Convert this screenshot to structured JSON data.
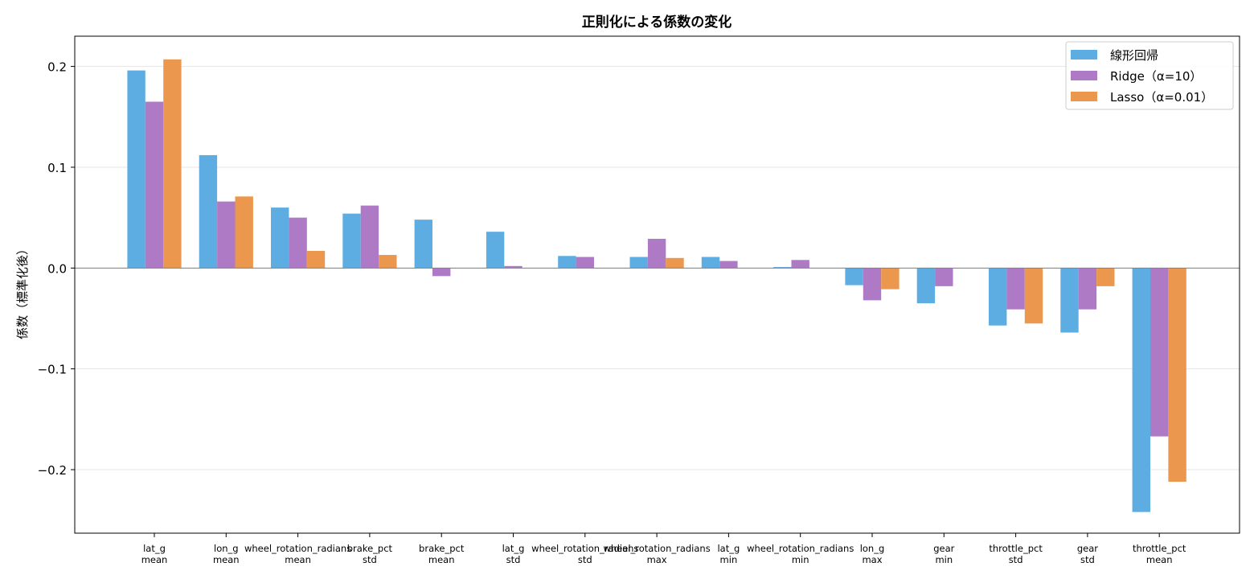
{
  "chart_data": {
    "type": "bar",
    "title": "正則化による係数の変化",
    "xlabel": "",
    "ylabel": "係数（標準化後）",
    "ylim": [
      -0.263,
      0.23
    ],
    "yticks": [
      -0.2,
      -0.1,
      0.0,
      0.1,
      0.2
    ],
    "ytick_labels": [
      "−0.2",
      "−0.1",
      "0.0",
      "0.1",
      "0.2"
    ],
    "grid": "horizontal",
    "legend_position": "top-right",
    "categories": [
      [
        "lat_g",
        "mean"
      ],
      [
        "lon_g",
        "mean"
      ],
      [
        "wheel_rotation_radians",
        "mean"
      ],
      [
        "brake_pct",
        "std"
      ],
      [
        "brake_pct",
        "mean"
      ],
      [
        "lat_g",
        "std"
      ],
      [
        "wheel_rotation_radians",
        "std"
      ],
      [
        "wheel_rotation_radians",
        "max"
      ],
      [
        "lat_g",
        "min"
      ],
      [
        "wheel_rotation_radians",
        "min"
      ],
      [
        "lon_g",
        "max"
      ],
      [
        "gear",
        "min"
      ],
      [
        "throttle_pct",
        "std"
      ],
      [
        "gear",
        "std"
      ],
      [
        "throttle_pct",
        "mean"
      ]
    ],
    "series": [
      {
        "name": "線形回帰",
        "color": "#5DADE2",
        "values": [
          0.196,
          0.112,
          0.06,
          0.054,
          0.048,
          0.036,
          0.012,
          0.011,
          0.011,
          0.001,
          -0.017,
          -0.035,
          -0.057,
          -0.064,
          -0.242
        ]
      },
      {
        "name": "Ridge（α=10）",
        "color": "#AF7AC5",
        "values": [
          0.165,
          0.066,
          0.05,
          0.062,
          -0.008,
          0.002,
          0.011,
          0.029,
          0.007,
          0.008,
          -0.032,
          -0.018,
          -0.041,
          -0.041,
          -0.167
        ]
      },
      {
        "name": "Lasso（α=0.01）",
        "color": "#EB984E",
        "values": [
          0.207,
          0.071,
          0.017,
          0.013,
          0.0,
          0.0,
          0.0,
          0.01,
          0.0,
          0.0,
          -0.021,
          0.0,
          -0.055,
          -0.018,
          -0.212
        ]
      }
    ]
  }
}
